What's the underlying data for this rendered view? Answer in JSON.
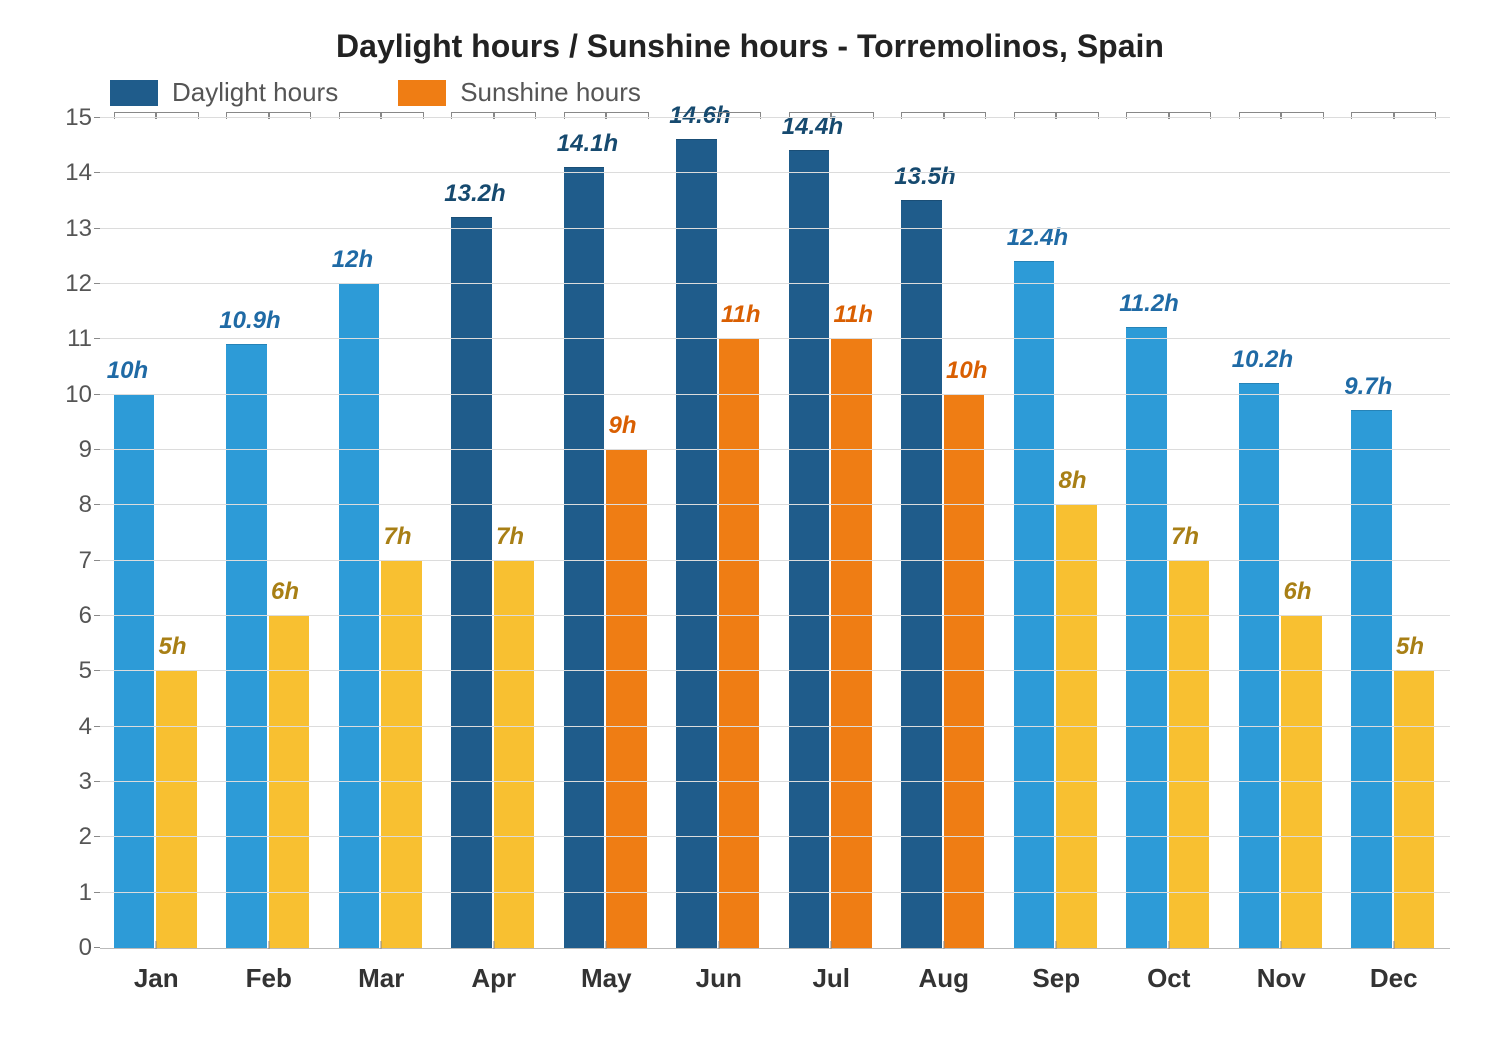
{
  "chart": {
    "type": "bar",
    "title": "Daylight hours / Sunshine hours - Torremolinos, Spain",
    "title_fontsize": 32,
    "title_color": "#222222",
    "background_color": "#ffffff",
    "grid_color": "#dcdcdc",
    "axis_color": "#888888",
    "ylim": [
      0,
      15
    ],
    "ytick_step": 1,
    "ylabel_fontsize": 24,
    "ylabel_color": "#555555",
    "xlabel_fontsize": 26,
    "xlabel_color": "#333333",
    "value_label_fontsize": 24,
    "value_label_fontstyle": "italic",
    "value_label_fontweight": "bold",
    "bar_group_gap_pct": 12,
    "bar_width_pct": 36,
    "legend": {
      "position": "top-left",
      "fontsize": 26,
      "color": "#555555",
      "items": [
        {
          "label": "Daylight hours",
          "swatch": "#1f5c8b"
        },
        {
          "label": "Sunshine hours",
          "swatch": "#ef7d14"
        }
      ]
    },
    "categories": [
      "Jan",
      "Feb",
      "Mar",
      "Apr",
      "May",
      "Jun",
      "Jul",
      "Aug",
      "Sep",
      "Oct",
      "Nov",
      "Dec"
    ],
    "series": [
      {
        "name": "Daylight hours",
        "values": [
          10,
          10.9,
          12,
          13.2,
          14.1,
          14.6,
          14.4,
          13.5,
          12.4,
          11.2,
          10.2,
          9.7
        ],
        "labels": [
          "10h",
          "10.9h",
          "12h",
          "13.2h",
          "14.1h",
          "14.6h",
          "14.4h",
          "13.5h",
          "12.4h",
          "11.2h",
          "10.2h",
          "9.7h"
        ],
        "bar_colors": [
          "#2d9bd7",
          "#2d9bd7",
          "#2d9bd7",
          "#1f5c8b",
          "#1f5c8b",
          "#1f5c8b",
          "#1f5c8b",
          "#1f5c8b",
          "#2d9bd7",
          "#2d9bd7",
          "#2d9bd7",
          "#2d9bd7"
        ],
        "label_colors": [
          "#1f6aa5",
          "#1f6aa5",
          "#1f6aa5",
          "#164a6f",
          "#164a6f",
          "#164a6f",
          "#164a6f",
          "#164a6f",
          "#1f6aa5",
          "#1f6aa5",
          "#1f6aa5",
          "#1f6aa5"
        ]
      },
      {
        "name": "Sunshine hours",
        "values": [
          5,
          6,
          7,
          7,
          9,
          11,
          11,
          10,
          8,
          7,
          6,
          5
        ],
        "labels": [
          "5h",
          "6h",
          "7h",
          "7h",
          "9h",
          "11h",
          "11h",
          "10h",
          "8h",
          "7h",
          "6h",
          "5h"
        ],
        "bar_colors": [
          "#f8c031",
          "#f8c031",
          "#f8c031",
          "#f8c031",
          "#ef7d14",
          "#ef7d14",
          "#ef7d14",
          "#ef7d14",
          "#f8c031",
          "#f8c031",
          "#f8c031",
          "#f8c031"
        ],
        "label_colors": [
          "#a87f15",
          "#a87f15",
          "#a87f15",
          "#a87f15",
          "#d95f02",
          "#d95f02",
          "#d95f02",
          "#d95f02",
          "#a87f15",
          "#a87f15",
          "#a87f15",
          "#a87f15"
        ]
      }
    ]
  }
}
